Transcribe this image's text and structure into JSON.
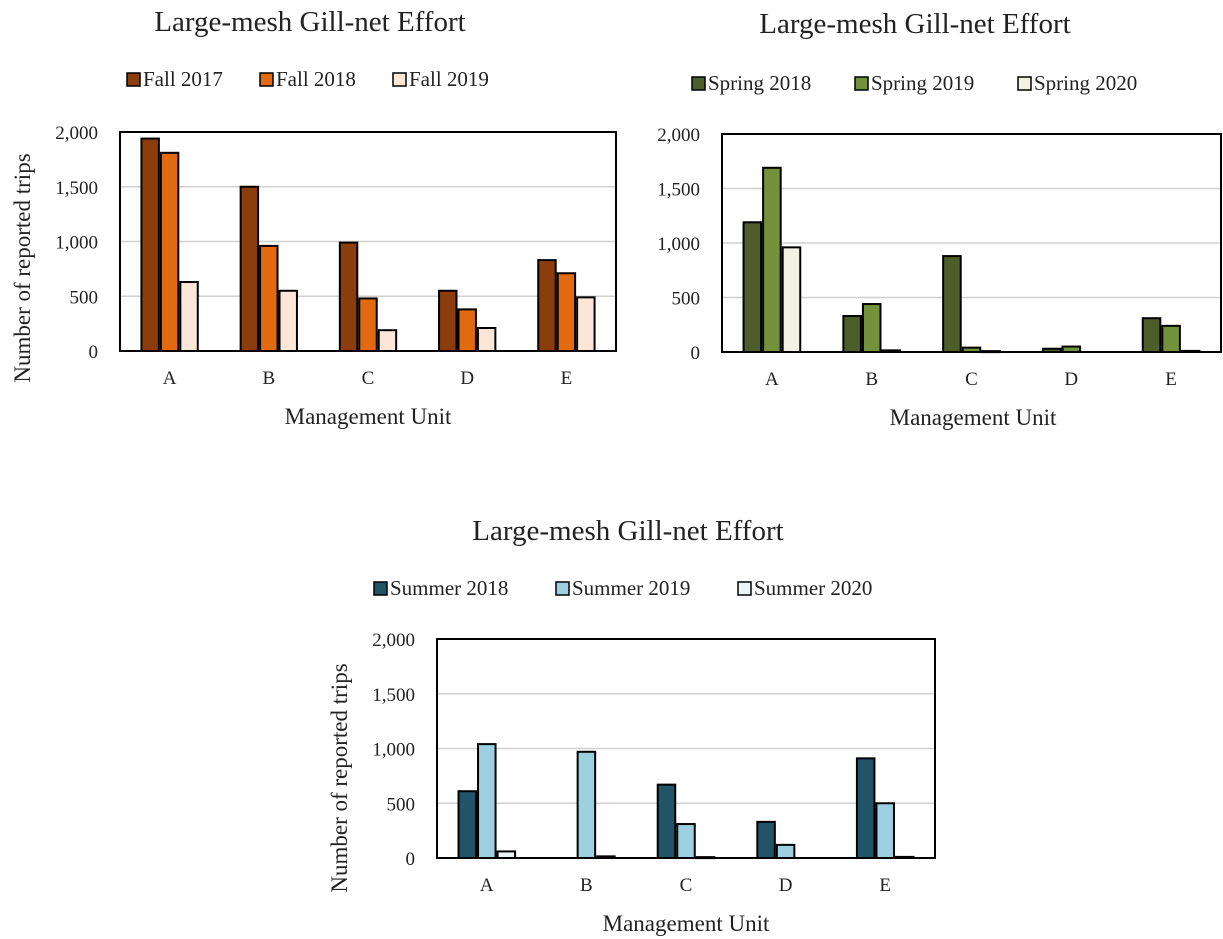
{
  "chart_data": [
    {
      "type": "bar",
      "title": "Large-mesh Gill-net Effort",
      "xlabel": "Management Unit",
      "ylabel": "Number of reported trips",
      "categories": [
        "A",
        "B",
        "C",
        "D",
        "E"
      ],
      "ylim": [
        0,
        2000
      ],
      "yticks": [
        "0",
        "500",
        "1,000",
        "1,500",
        "2,000"
      ],
      "ytick_values": [
        0,
        500,
        1000,
        1500,
        2000
      ],
      "grid": true,
      "legend_position": "top",
      "series": [
        {
          "name": "Fall 2017",
          "color": "#8b3e0b",
          "values": [
            1940,
            1500,
            990,
            550,
            830
          ]
        },
        {
          "name": "Fall 2018",
          "color": "#e26a10",
          "values": [
            1810,
            960,
            480,
            380,
            710
          ]
        },
        {
          "name": "Fall 2019",
          "color": "#fbe6d8",
          "values": [
            630,
            550,
            190,
            210,
            490
          ]
        }
      ]
    },
    {
      "type": "bar",
      "title": "Large-mesh Gill-net Effort",
      "xlabel": "Management Unit",
      "ylabel": "",
      "categories": [
        "A",
        "B",
        "C",
        "D",
        "E"
      ],
      "ylim": [
        0,
        2000
      ],
      "yticks": [
        "0",
        "500",
        "1,000",
        "1,500",
        "2,000"
      ],
      "ytick_values": [
        0,
        500,
        1000,
        1500,
        2000
      ],
      "grid": true,
      "legend_position": "top",
      "series": [
        {
          "name": "Spring 2018",
          "color": "#4d5e2b",
          "values": [
            1190,
            330,
            880,
            30,
            310
          ]
        },
        {
          "name": "Spring 2019",
          "color": "#74913b",
          "values": [
            1690,
            440,
            40,
            50,
            240
          ]
        },
        {
          "name": "Spring 2020",
          "color": "#f1f2e4",
          "values": [
            960,
            15,
            8,
            0,
            10
          ]
        }
      ]
    },
    {
      "type": "bar",
      "title": "Large-mesh Gill-net Effort",
      "xlabel": "Management Unit",
      "ylabel": "Number of reported trips",
      "categories": [
        "A",
        "B",
        "C",
        "D",
        "E"
      ],
      "ylim": [
        0,
        2000
      ],
      "yticks": [
        "0",
        "500",
        "1,000",
        "1,500",
        "2,000"
      ],
      "ytick_values": [
        0,
        500,
        1000,
        1500,
        2000
      ],
      "grid": true,
      "legend_position": "top",
      "series": [
        {
          "name": "Summer 2018",
          "color": "#215466",
          "values": [
            610,
            0,
            670,
            330,
            910
          ]
        },
        {
          "name": "Summer 2019",
          "color": "#9ccfe0",
          "values": [
            1040,
            970,
            310,
            120,
            500
          ]
        },
        {
          "name": "Summer 2020",
          "color": "#ecf5f7",
          "values": [
            60,
            15,
            8,
            0,
            10
          ]
        }
      ]
    }
  ]
}
